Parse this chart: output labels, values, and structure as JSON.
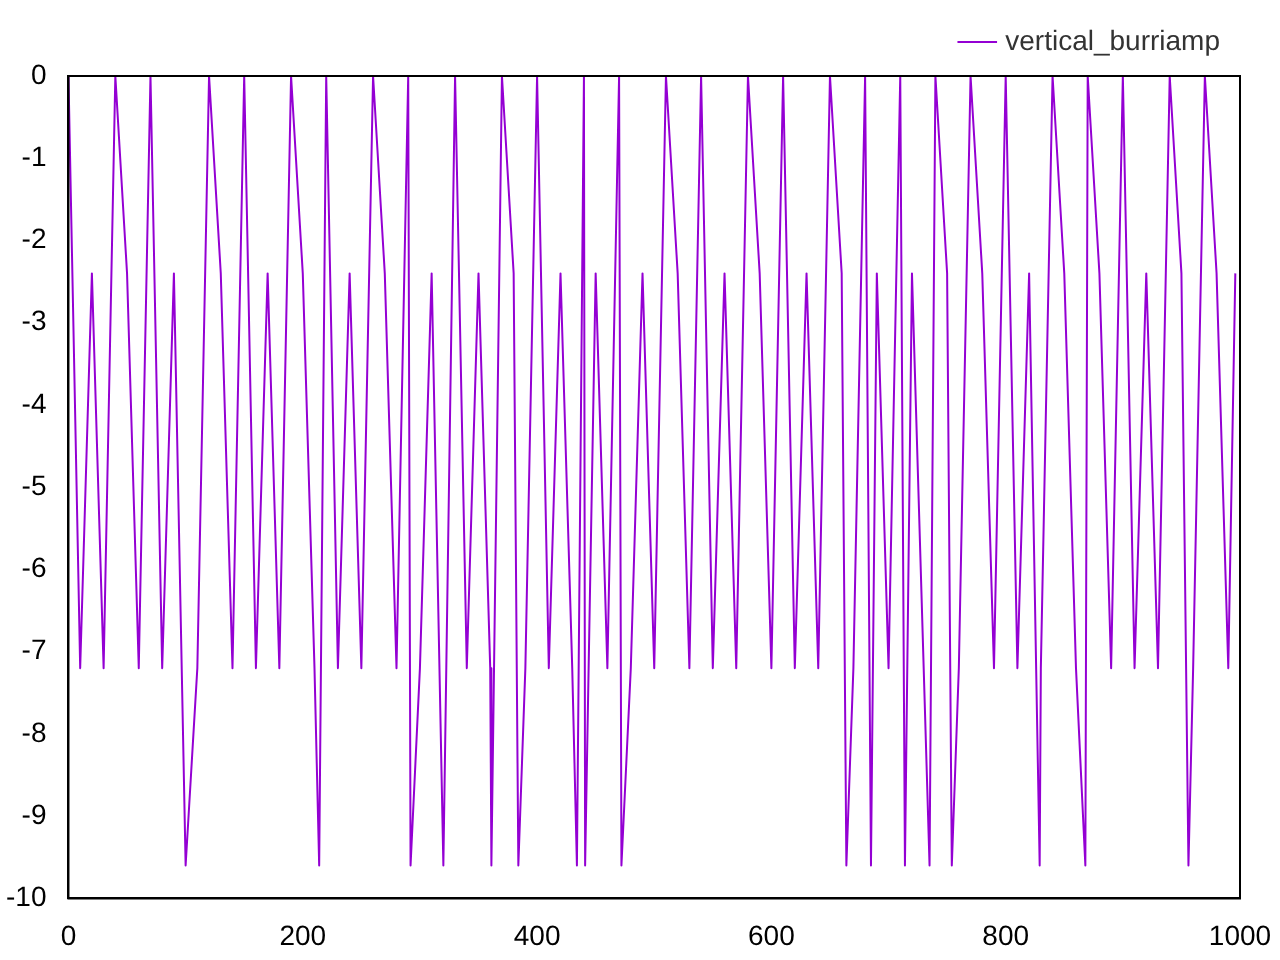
{
  "chart_data": {
    "type": "line",
    "legend": "top right",
    "grid": false,
    "marker": "none",
    "line_style": "solid",
    "xlim": [
      0,
      1000
    ],
    "xticks": [
      0,
      200,
      400,
      600,
      800,
      1000
    ],
    "ylim": [
      -10,
      0
    ],
    "yticks": [
      -10,
      -9,
      -8,
      -7,
      -6,
      -5,
      -4,
      -3,
      -2,
      -1,
      0
    ],
    "x": [
      0,
      10,
      20,
      30,
      40,
      50,
      60,
      70,
      80,
      90,
      100,
      110,
      120,
      130,
      140,
      150,
      160,
      170,
      180,
      190,
      200,
      210,
      214,
      220,
      230,
      240,
      250,
      260,
      270,
      280,
      290,
      292,
      300,
      310,
      320,
      330,
      340,
      350,
      360,
      361,
      370,
      380,
      384,
      390,
      400,
      410,
      420,
      430,
      434,
      440,
      441,
      450,
      460,
      470,
      472,
      480,
      490,
      500,
      510,
      520,
      530,
      540,
      550,
      560,
      570,
      580,
      590,
      600,
      610,
      620,
      630,
      640,
      650,
      660,
      664,
      670,
      680,
      685,
      690,
      700,
      710,
      714,
      720,
      730,
      735,
      740,
      750,
      754,
      760,
      770,
      780,
      790,
      800,
      810,
      820,
      829,
      830,
      840,
      850,
      860,
      868,
      870,
      880,
      890,
      900,
      910,
      920,
      930,
      940,
      950,
      956,
      960,
      970,
      980,
      990,
      996
    ],
    "series": [
      {
        "name": "vertical_burriamp",
        "color": "#9400d3",
        "values": [
          0,
          -7.2,
          -2.4,
          -7.2,
          0,
          -2.4,
          -7.2,
          0,
          -7.2,
          -2.4,
          -9.6,
          -7.2,
          0,
          -2.4,
          -7.2,
          0,
          -7.2,
          -2.4,
          -7.2,
          0,
          -2.4,
          -7.2,
          -9.6,
          0,
          -7.2,
          -2.4,
          -7.2,
          0,
          -2.4,
          -7.2,
          0,
          -9.6,
          -7.2,
          -2.4,
          -9.6,
          0,
          -7.2,
          -2.4,
          -7.2,
          -9.6,
          0,
          -2.4,
          -9.6,
          -7.2,
          0,
          -7.2,
          -2.4,
          -7.2,
          -9.6,
          0,
          -9.6,
          -2.4,
          -7.2,
          0,
          -9.6,
          -7.2,
          -2.4,
          -7.2,
          0,
          -2.4,
          -7.2,
          0,
          -7.2,
          -2.4,
          -7.2,
          0,
          -2.4,
          -7.2,
          0,
          -7.2,
          -2.4,
          -7.2,
          0,
          -2.4,
          -9.6,
          -7.2,
          0,
          -9.6,
          -2.4,
          -7.2,
          0,
          -9.6,
          -2.4,
          -7.2,
          -9.6,
          0,
          -2.4,
          -9.6,
          -7.2,
          0,
          -2.4,
          -7.2,
          0,
          -7.2,
          -2.4,
          -9.6,
          -7.2,
          0,
          -2.4,
          -7.2,
          -9.6,
          0,
          -2.4,
          -7.2,
          0,
          -7.2,
          -2.4,
          -7.2,
          0,
          -2.4,
          -9.6,
          -7.2,
          0,
          -2.4,
          -7.2,
          -2.4
        ]
      }
    ]
  }
}
